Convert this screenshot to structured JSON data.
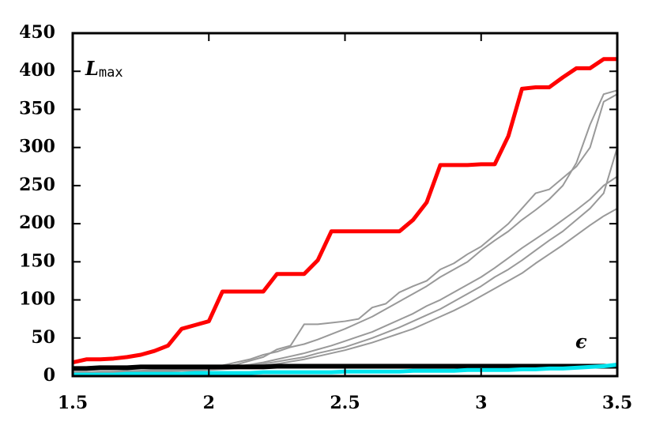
{
  "chart_data": {
    "type": "line",
    "y_label": {
      "main": "L",
      "sub": "max"
    },
    "x_label": "ϵ",
    "x": [
      1.5,
      1.55,
      1.6,
      1.65,
      1.7,
      1.75,
      1.8,
      1.85,
      1.9,
      1.95,
      2,
      2.05,
      2.1,
      2.15,
      2.2,
      2.25,
      2.3,
      2.35,
      2.4,
      2.45,
      2.5,
      2.55,
      2.6,
      2.65,
      2.7,
      2.75,
      2.8,
      2.85,
      2.9,
      2.95,
      3,
      3.05,
      3.1,
      3.15,
      3.2,
      3.25,
      3.3,
      3.35,
      3.4,
      3.45,
      3.5
    ],
    "series": [
      {
        "color": "#999999",
        "width": 2,
        "values": [
          5,
          5,
          6,
          6,
          7,
          7,
          8,
          8,
          9,
          10,
          12,
          14,
          18,
          22,
          28,
          32,
          38,
          42,
          48,
          55,
          62,
          70,
          78,
          88,
          98,
          108,
          118,
          130,
          140,
          150,
          165,
          178,
          190,
          205,
          218,
          232,
          250,
          280,
          330,
          370,
          375
        ]
      },
      {
        "color": "#999999",
        "width": 2,
        "values": [
          4,
          4,
          5,
          5,
          6,
          6,
          7,
          7,
          8,
          9,
          10,
          11,
          13,
          15,
          18,
          22,
          26,
          30,
          35,
          40,
          46,
          52,
          58,
          66,
          74,
          82,
          92,
          100,
          110,
          120,
          130,
          142,
          155,
          168,
          180,
          192,
          205,
          218,
          232,
          250,
          262
        ]
      },
      {
        "color": "#999999",
        "width": 2,
        "values": [
          3,
          3,
          4,
          4,
          5,
          5,
          6,
          6,
          7,
          7,
          8,
          9,
          10,
          12,
          14,
          16,
          19,
          22,
          26,
          30,
          34,
          39,
          44,
          50,
          56,
          62,
          70,
          78,
          86,
          95,
          105,
          115,
          125,
          135,
          148,
          160,
          172,
          185,
          198,
          210,
          220
        ]
      },
      {
        "color": "#999999",
        "width": 2,
        "values": [
          5,
          5,
          5,
          6,
          6,
          7,
          7,
          8,
          8,
          9,
          10,
          12,
          15,
          20,
          25,
          35,
          40,
          68,
          68,
          70,
          72,
          75,
          90,
          95,
          110,
          118,
          125,
          140,
          148,
          160,
          170,
          185,
          200,
          220,
          240,
          245,
          260,
          275,
          300,
          360,
          370
        ]
      },
      {
        "color": "#999999",
        "width": 2,
        "values": [
          4,
          4,
          5,
          5,
          6,
          6,
          7,
          7,
          8,
          8,
          9,
          10,
          12,
          14,
          16,
          19,
          22,
          25,
          30,
          34,
          38,
          44,
          50,
          57,
          64,
          72,
          80,
          88,
          98,
          108,
          118,
          130,
          140,
          152,
          165,
          178,
          190,
          205,
          220,
          240,
          300
        ]
      },
      {
        "color": "#000000",
        "width": 6,
        "values": [
          10,
          10,
          11,
          11,
          11,
          12,
          12,
          12,
          12,
          12,
          12,
          12,
          12,
          12,
          12,
          13,
          13,
          13,
          13,
          13,
          13,
          13,
          13,
          13,
          13,
          13,
          13,
          13,
          13,
          13,
          13,
          13,
          13,
          13,
          13,
          13,
          13,
          13,
          13,
          13,
          13
        ]
      },
      {
        "color": "#00e5ee",
        "width": 5,
        "values": [
          2,
          2,
          2,
          2,
          3,
          3,
          3,
          3,
          3,
          4,
          4,
          4,
          4,
          4,
          5,
          5,
          5,
          5,
          5,
          5,
          6,
          6,
          6,
          6,
          6,
          7,
          7,
          7,
          7,
          8,
          8,
          8,
          8,
          9,
          9,
          10,
          10,
          11,
          12,
          13,
          15
        ]
      },
      {
        "color": "#ff0000",
        "width": 5,
        "values": [
          18,
          22,
          22,
          23,
          25,
          28,
          33,
          40,
          62,
          67,
          72,
          111,
          111,
          111,
          111,
          134,
          134,
          134,
          152,
          190,
          190,
          190,
          190,
          190,
          190,
          205,
          228,
          277,
          277,
          277,
          278,
          278,
          315,
          377,
          379,
          379,
          392,
          404,
          404,
          416,
          416
        ]
      }
    ],
    "xlim": [
      1.5,
      3.5
    ],
    "xticks": [
      1.5,
      2,
      2.5,
      3,
      3.5
    ],
    "ylim": [
      0,
      450
    ],
    "yticks": [
      0,
      50,
      100,
      150,
      200,
      250,
      300,
      350,
      400,
      450
    ]
  }
}
